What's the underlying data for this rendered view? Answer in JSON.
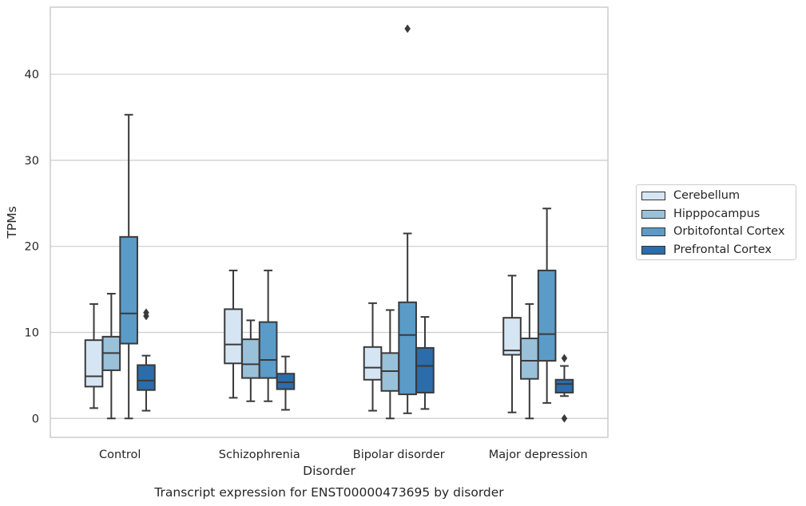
{
  "chart_data": {
    "type": "boxplot",
    "title": "Transcript expression for ENST00000473695 by disorder",
    "xlabel": "Disorder",
    "ylabel": "TPMs",
    "ylim": [
      -2.2,
      47.8
    ],
    "yticks": [
      0,
      10,
      20,
      30,
      40
    ],
    "grid": "horizontal",
    "legend_position": "right",
    "categories": [
      "Control",
      "Schizophrenia",
      "Bipolar disorder",
      "Major depression"
    ],
    "series": [
      {
        "name": "Cerebellum",
        "color": "#d6e5f3",
        "boxes": [
          {
            "whisker_low": 1.2,
            "q1": 3.7,
            "median": 4.9,
            "q3": 9.1,
            "whisker_high": 13.3,
            "outliers": []
          },
          {
            "whisker_low": 2.4,
            "q1": 6.4,
            "median": 8.6,
            "q3": 12.7,
            "whisker_high": 17.2,
            "outliers": []
          },
          {
            "whisker_low": 0.9,
            "q1": 4.5,
            "median": 5.9,
            "q3": 8.3,
            "whisker_high": 13.4,
            "outliers": []
          },
          {
            "whisker_low": 0.7,
            "q1": 7.4,
            "median": 7.9,
            "q3": 11.7,
            "whisker_high": 16.6,
            "outliers": []
          }
        ]
      },
      {
        "name": "Hipppocampus",
        "color": "#9ac1da",
        "boxes": [
          {
            "whisker_low": 0.0,
            "q1": 5.6,
            "median": 7.6,
            "q3": 9.5,
            "whisker_high": 14.5,
            "outliers": []
          },
          {
            "whisker_low": 2.0,
            "q1": 4.7,
            "median": 6.3,
            "q3": 9.2,
            "whisker_high": 11.4,
            "outliers": []
          },
          {
            "whisker_low": 0.0,
            "q1": 3.2,
            "median": 5.5,
            "q3": 7.6,
            "whisker_high": 12.6,
            "outliers": []
          },
          {
            "whisker_low": 0.0,
            "q1": 4.6,
            "median": 6.7,
            "q3": 9.3,
            "whisker_high": 13.3,
            "outliers": []
          }
        ]
      },
      {
        "name": "Orbitofontal Cortex",
        "color": "#5b9bc8",
        "boxes": [
          {
            "whisker_low": 0.0,
            "q1": 8.7,
            "median": 12.2,
            "q3": 21.1,
            "whisker_high": 35.3,
            "outliers": []
          },
          {
            "whisker_low": 2.0,
            "q1": 4.7,
            "median": 6.8,
            "q3": 11.2,
            "whisker_high": 17.2,
            "outliers": []
          },
          {
            "whisker_low": 0.6,
            "q1": 2.8,
            "median": 9.7,
            "q3": 13.5,
            "whisker_high": 21.5,
            "outliers": [
              45.3
            ]
          },
          {
            "whisker_low": 1.8,
            "q1": 6.7,
            "median": 9.8,
            "q3": 17.2,
            "whisker_high": 24.4,
            "outliers": []
          }
        ]
      },
      {
        "name": "Prefrontal Cortex",
        "color": "#2b6cab",
        "boxes": [
          {
            "whisker_low": 0.9,
            "q1": 3.3,
            "median": 4.4,
            "q3": 6.2,
            "whisker_high": 7.3,
            "outliers": [
              11.9,
              12.3
            ]
          },
          {
            "whisker_low": 1.0,
            "q1": 3.4,
            "median": 4.2,
            "q3": 5.2,
            "whisker_high": 7.2,
            "outliers": []
          },
          {
            "whisker_low": 1.1,
            "q1": 3.0,
            "median": 6.1,
            "q3": 8.2,
            "whisker_high": 11.8,
            "outliers": []
          },
          {
            "whisker_low": 2.6,
            "q1": 3.0,
            "median": 4.0,
            "q3": 4.5,
            "whisker_high": 6.1,
            "outliers": [
              7.0,
              0.0
            ]
          }
        ]
      }
    ]
  }
}
